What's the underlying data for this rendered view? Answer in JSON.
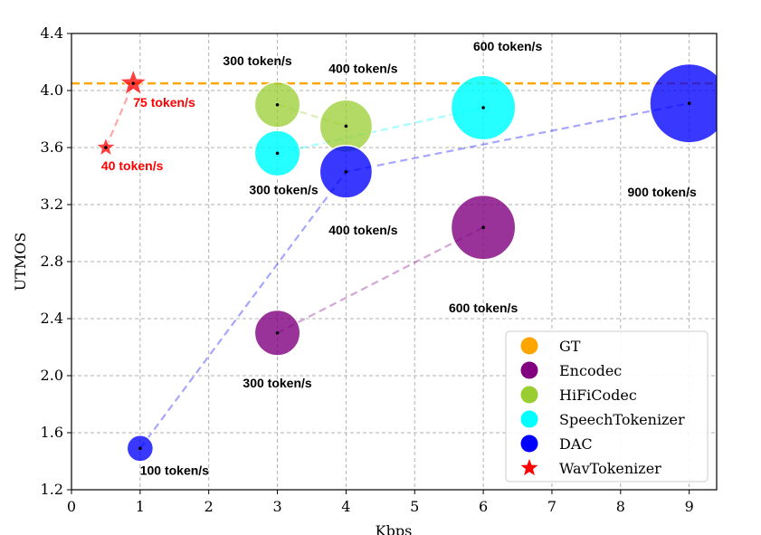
{
  "chart_data": {
    "type": "scatter",
    "title": "",
    "xlabel": "Kbps",
    "ylabel": "UTMOS",
    "xlim": [
      0,
      9.4
    ],
    "ylim": [
      1.2,
      4.4
    ],
    "xticks": [
      "0",
      "1",
      "2",
      "3",
      "4",
      "5",
      "6",
      "7",
      "8",
      "9"
    ],
    "yticks": [
      "1.2",
      "1.6",
      "2.0",
      "2.4",
      "2.8",
      "3.2",
      "3.6",
      "4.0",
      "4.4"
    ],
    "grid": true,
    "legend_position": "bottom-right",
    "gt": {
      "name": "GT",
      "value": 4.05,
      "color": "#ffa500"
    },
    "series": [
      {
        "name": "Encodec",
        "color": "#800080",
        "points": [
          {
            "x": 3,
            "y": 2.3,
            "tokens": 300,
            "label": "300 token/s"
          },
          {
            "x": 6,
            "y": 3.04,
            "tokens": 600,
            "label": "600 token/s"
          }
        ]
      },
      {
        "name": "HiFiCodec",
        "color": "#9acd32",
        "points": [
          {
            "x": 3,
            "y": 3.9,
            "tokens": 300,
            "label": "300 token/s"
          },
          {
            "x": 4,
            "y": 3.75,
            "tokens": 400,
            "label": "400 token/s"
          }
        ]
      },
      {
        "name": "SpeechTokenizer",
        "color": "#00ffff",
        "points": [
          {
            "x": 3,
            "y": 3.56,
            "tokens": 300,
            "label": "300 token/s"
          },
          {
            "x": 6,
            "y": 3.88,
            "tokens": 600,
            "label": "600 token/s"
          }
        ]
      },
      {
        "name": "DAC",
        "color": "#0000ff",
        "points": [
          {
            "x": 1,
            "y": 1.49,
            "tokens": 100,
            "label": "100 token/s"
          },
          {
            "x": 4,
            "y": 3.43,
            "tokens": 400,
            "label": "400 token/s"
          },
          {
            "x": 9,
            "y": 3.91,
            "tokens": 900,
            "label": "900 token/s"
          }
        ]
      },
      {
        "name": "WavTokenizer",
        "color": "#ff0000",
        "points": [
          {
            "x": 0.5,
            "y": 3.6,
            "tokens": 40,
            "label": "40 token/s"
          },
          {
            "x": 0.9,
            "y": 4.05,
            "tokens": 75,
            "label": "75 token/s"
          }
        ]
      }
    ]
  }
}
